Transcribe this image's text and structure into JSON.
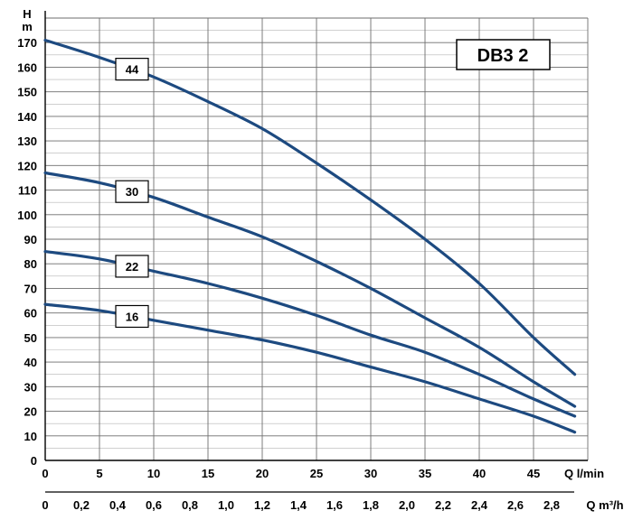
{
  "chart_data": {
    "type": "line",
    "title": "DB3 2",
    "y_axis": {
      "label_line1": "H",
      "label_line2": "m",
      "range": [
        0,
        180
      ],
      "ticks": [
        0,
        10,
        20,
        30,
        40,
        50,
        60,
        70,
        80,
        90,
        100,
        110,
        120,
        130,
        140,
        150,
        160,
        170
      ],
      "minor_step": 5
    },
    "x_axis": {
      "label": "Q l/min",
      "range": [
        0,
        50
      ],
      "ticks": [
        0,
        5,
        10,
        15,
        20,
        25,
        30,
        35,
        40,
        45
      ],
      "gridlines": [
        0,
        5,
        10,
        15,
        20,
        25,
        30,
        35,
        40,
        45,
        50
      ]
    },
    "x_axis_secondary": {
      "label": "Q m³/h",
      "ticks": [
        "0",
        "0,2",
        "0,4",
        "0,6",
        "0,8",
        "1,0",
        "1,2",
        "1,4",
        "1,6",
        "1,8",
        "2,0",
        "2,2",
        "2,4",
        "2,6",
        "2,8"
      ]
    },
    "grid": true,
    "series_color": "#1d4a80",
    "series": [
      {
        "name": "44",
        "x": [
          0,
          5,
          10,
          15,
          20,
          25,
          30,
          35,
          40,
          45,
          48.8
        ],
        "y": [
          171,
          164,
          156,
          146,
          135,
          121,
          106,
          90,
          72,
          50,
          35
        ],
        "label_at": 8
      },
      {
        "name": "30",
        "x": [
          0,
          5,
          10,
          15,
          20,
          25,
          30,
          35,
          40,
          45,
          48.8
        ],
        "y": [
          117,
          113,
          107,
          99,
          91,
          81,
          70,
          58,
          46,
          32,
          22
        ],
        "label_at": 8
      },
      {
        "name": "22",
        "x": [
          0,
          5,
          10,
          15,
          20,
          25,
          30,
          35,
          40,
          45,
          48.8
        ],
        "y": [
          85,
          82,
          77,
          72,
          66,
          59,
          51,
          44,
          35,
          25,
          18
        ],
        "label_at": 8
      },
      {
        "name": "16",
        "x": [
          0,
          5,
          10,
          15,
          20,
          25,
          30,
          35,
          40,
          45,
          48.8
        ],
        "y": [
          63.5,
          61,
          57,
          53,
          49,
          44,
          38,
          32,
          25,
          18,
          11.5
        ],
        "label_at": 8
      }
    ]
  }
}
